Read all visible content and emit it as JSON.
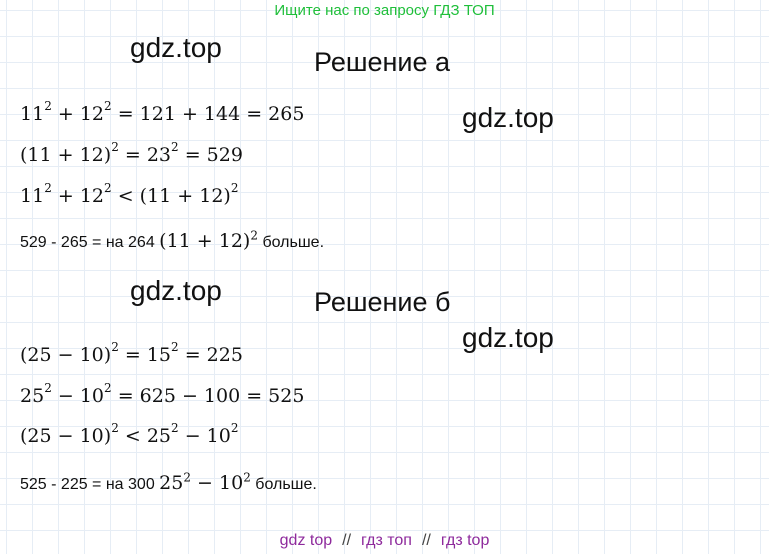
{
  "banner": "Ищите нас по запросу ГДЗ ТОП",
  "watermark": "gdz.top",
  "part_a": {
    "heading": "Решение а",
    "line1": {
      "a": "11",
      "e1": "2",
      "b": " + 12",
      "e2": "2",
      "c": " = 121 + 144 = 265"
    },
    "line2": {
      "a": "(11 + 12)",
      "e1": "2",
      "b": " = 23",
      "e2": "2",
      "c": " = 529"
    },
    "line3": {
      "a": "11",
      "e1": "2",
      "b": " + 12",
      "e2": "2",
      "c": " < (11 + 12)",
      "e3": "2"
    },
    "conclusion": {
      "pre": "529 - 265 = на 264 ",
      "m": "(11 + 12)",
      "e": "2",
      "post": " больше."
    }
  },
  "part_b": {
    "heading": "Решение б",
    "line1": {
      "a": "(25 − 10)",
      "e1": "2",
      "b": " = 15",
      "e2": "2",
      "c": " = 225"
    },
    "line2": {
      "a": "25",
      "e1": "2",
      "b": " − 10",
      "e2": "2",
      "c": " = 625 − 100 = 525"
    },
    "line3": {
      "a": "(25 − 10)",
      "e1": "2",
      "b": " < 25",
      "e2": "2",
      "c": " − 10",
      "e3": "2"
    },
    "conclusion": {
      "pre": "525 - 225 = на 300 ",
      "m1": "25",
      "e1": "2",
      "m2": " − 10",
      "e2": "2",
      "post": " больше."
    }
  },
  "footer": {
    "link1": "gdz top",
    "sep": "//",
    "link2": "гдз топ",
    "link3": "гдз top"
  }
}
